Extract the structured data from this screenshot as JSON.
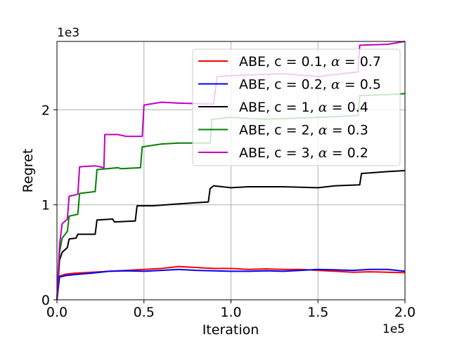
{
  "chart_data": {
    "type": "line",
    "xlabel": "Iteration",
    "ylabel": "Regret",
    "x_offset_label": "1e5",
    "y_offset_label": "1e3",
    "xlim": [
      0,
      200000
    ],
    "ylim": [
      0,
      2720
    ],
    "x_ticks": [
      {
        "value": 0,
        "label": "0.0"
      },
      {
        "value": 50000,
        "label": "0.5"
      },
      {
        "value": 100000,
        "label": "1.0"
      },
      {
        "value": 150000,
        "label": "1.5"
      },
      {
        "value": 200000,
        "label": "2.0"
      }
    ],
    "y_ticks": [
      {
        "value": 0,
        "label": "0"
      },
      {
        "value": 1000,
        "label": "1"
      },
      {
        "value": 2000,
        "label": "2"
      }
    ],
    "grid": true,
    "legend_position": "top-right",
    "series": [
      {
        "name": "ABE, c = 0.1, α = 0.7",
        "legend_text": "ABE, c = 0.1, ",
        "alpha_text": "0.7",
        "color": "#ff0000",
        "points": [
          [
            0,
            0
          ],
          [
            1500,
            250
          ],
          [
            5000,
            270
          ],
          [
            10000,
            280
          ],
          [
            20000,
            290
          ],
          [
            30000,
            300
          ],
          [
            40000,
            310
          ],
          [
            50000,
            320
          ],
          [
            60000,
            330
          ],
          [
            70000,
            350
          ],
          [
            80000,
            340
          ],
          [
            90000,
            330
          ],
          [
            100000,
            330
          ],
          [
            110000,
            320
          ],
          [
            120000,
            325
          ],
          [
            130000,
            320
          ],
          [
            140000,
            320
          ],
          [
            150000,
            310
          ],
          [
            160000,
            300
          ],
          [
            170000,
            290
          ],
          [
            180000,
            295
          ],
          [
            190000,
            290
          ],
          [
            200000,
            285
          ]
        ]
      },
      {
        "name": "ABE, c = 0.2, α = 0.5",
        "legend_text": "ABE, c = 0.2, ",
        "alpha_text": "0.5",
        "color": "#0000ff",
        "points": [
          [
            0,
            0
          ],
          [
            1500,
            240
          ],
          [
            5000,
            255
          ],
          [
            10000,
            265
          ],
          [
            20000,
            280
          ],
          [
            30000,
            300
          ],
          [
            40000,
            305
          ],
          [
            50000,
            300
          ],
          [
            60000,
            310
          ],
          [
            70000,
            320
          ],
          [
            80000,
            310
          ],
          [
            90000,
            305
          ],
          [
            100000,
            300
          ],
          [
            110000,
            300
          ],
          [
            120000,
            305
          ],
          [
            130000,
            300
          ],
          [
            140000,
            310
          ],
          [
            150000,
            320
          ],
          [
            160000,
            315
          ],
          [
            170000,
            310
          ],
          [
            180000,
            320
          ],
          [
            190000,
            320
          ],
          [
            200000,
            300
          ]
        ]
      },
      {
        "name": "ABE, c = 1, α = 0.4",
        "legend_text": "ABE, c = 1, ",
        "alpha_text": "0.4",
        "color": "#000000",
        "points": [
          [
            0,
            0
          ],
          [
            1500,
            420
          ],
          [
            3000,
            500
          ],
          [
            6000,
            550
          ],
          [
            7000,
            640
          ],
          [
            11000,
            650
          ],
          [
            12000,
            690
          ],
          [
            22000,
            690
          ],
          [
            23000,
            840
          ],
          [
            32000,
            850
          ],
          [
            33000,
            820
          ],
          [
            45000,
            830
          ],
          [
            46000,
            990
          ],
          [
            55000,
            990
          ],
          [
            70000,
            1010
          ],
          [
            87000,
            1030
          ],
          [
            88000,
            1170
          ],
          [
            90000,
            1200
          ],
          [
            100000,
            1180
          ],
          [
            110000,
            1190
          ],
          [
            130000,
            1190
          ],
          [
            150000,
            1180
          ],
          [
            160000,
            1200
          ],
          [
            174000,
            1210
          ],
          [
            175000,
            1330
          ],
          [
            190000,
            1350
          ],
          [
            200000,
            1360
          ]
        ]
      },
      {
        "name": "ABE, c = 2, α = 0.3",
        "legend_text": "ABE, c = 2, ",
        "alpha_text": "0.3",
        "color": "#008000",
        "points": [
          [
            0,
            0
          ],
          [
            1500,
            500
          ],
          [
            3000,
            650
          ],
          [
            6000,
            720
          ],
          [
            7000,
            880
          ],
          [
            12000,
            900
          ],
          [
            13000,
            1120
          ],
          [
            22000,
            1140
          ],
          [
            23000,
            1370
          ],
          [
            35000,
            1390
          ],
          [
            37000,
            1380
          ],
          [
            48000,
            1390
          ],
          [
            49000,
            1610
          ],
          [
            60000,
            1640
          ],
          [
            70000,
            1650
          ],
          [
            88000,
            1650
          ],
          [
            89000,
            1900
          ],
          [
            100000,
            1920
          ],
          [
            120000,
            1900
          ],
          [
            150000,
            1920
          ],
          [
            173000,
            1940
          ],
          [
            174000,
            2150
          ],
          [
            190000,
            2160
          ],
          [
            200000,
            2170
          ]
        ]
      },
      {
        "name": "ABE, c = 3, α = 0.2",
        "legend_text": "ABE, c = 3, ",
        "alpha_text": "0.2",
        "color": "#bf00bf",
        "points": [
          [
            0,
            0
          ],
          [
            1500,
            580
          ],
          [
            3000,
            800
          ],
          [
            6000,
            850
          ],
          [
            7000,
            1090
          ],
          [
            12000,
            1110
          ],
          [
            13000,
            1400
          ],
          [
            22000,
            1410
          ],
          [
            27000,
            1390
          ],
          [
            27500,
            1740
          ],
          [
            35000,
            1740
          ],
          [
            40000,
            1720
          ],
          [
            49000,
            1720
          ],
          [
            50000,
            2050
          ],
          [
            60000,
            2080
          ],
          [
            70000,
            2070
          ],
          [
            90000,
            2060
          ],
          [
            92000,
            2350
          ],
          [
            100000,
            2360
          ],
          [
            130000,
            2380
          ],
          [
            150000,
            2350
          ],
          [
            173000,
            2400
          ],
          [
            174000,
            2680
          ],
          [
            190000,
            2690
          ],
          [
            200000,
            2720
          ]
        ]
      }
    ]
  }
}
